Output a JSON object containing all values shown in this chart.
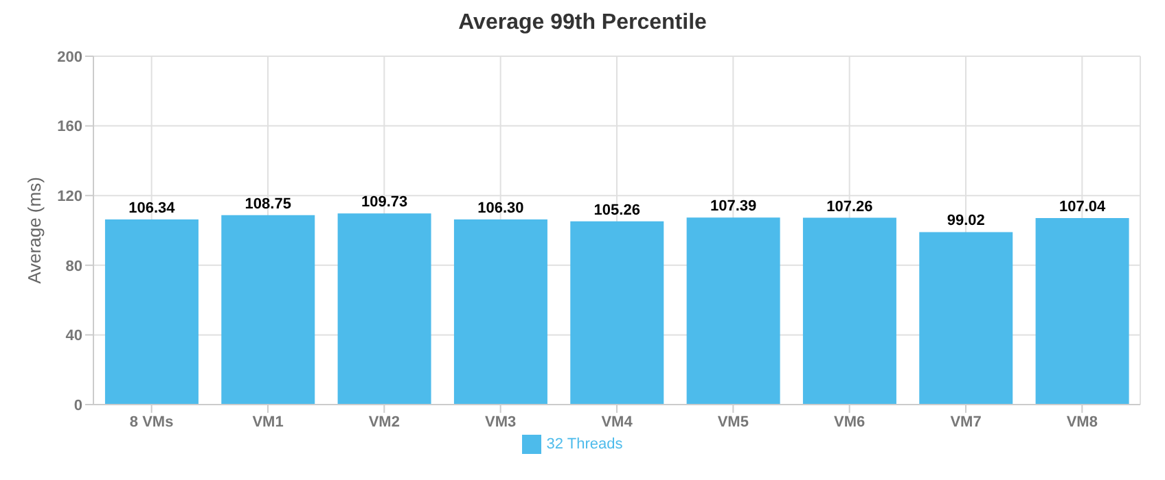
{
  "chart_data": {
    "type": "bar",
    "title": "Average 99th Percentile",
    "ylabel": "Average (ms)",
    "categories": [
      "8 VMs",
      "VM1",
      "VM2",
      "VM3",
      "VM4",
      "VM5",
      "VM6",
      "VM7",
      "VM8"
    ],
    "series": [
      {
        "name": "32 Threads",
        "color": "#4dbbeb",
        "values": [
          106.34,
          108.75,
          109.73,
          106.3,
          105.26,
          107.39,
          107.26,
          99.02,
          107.04
        ],
        "value_labels": [
          "106.34",
          "108.75",
          "109.73",
          "106.30",
          "105.26",
          "107.39",
          "107.26",
          "99.02",
          "107.04"
        ]
      }
    ],
    "ylim": [
      0,
      200
    ],
    "yticks": [
      0,
      40,
      80,
      120,
      160,
      200
    ],
    "grid": true,
    "legend": "bottom"
  }
}
